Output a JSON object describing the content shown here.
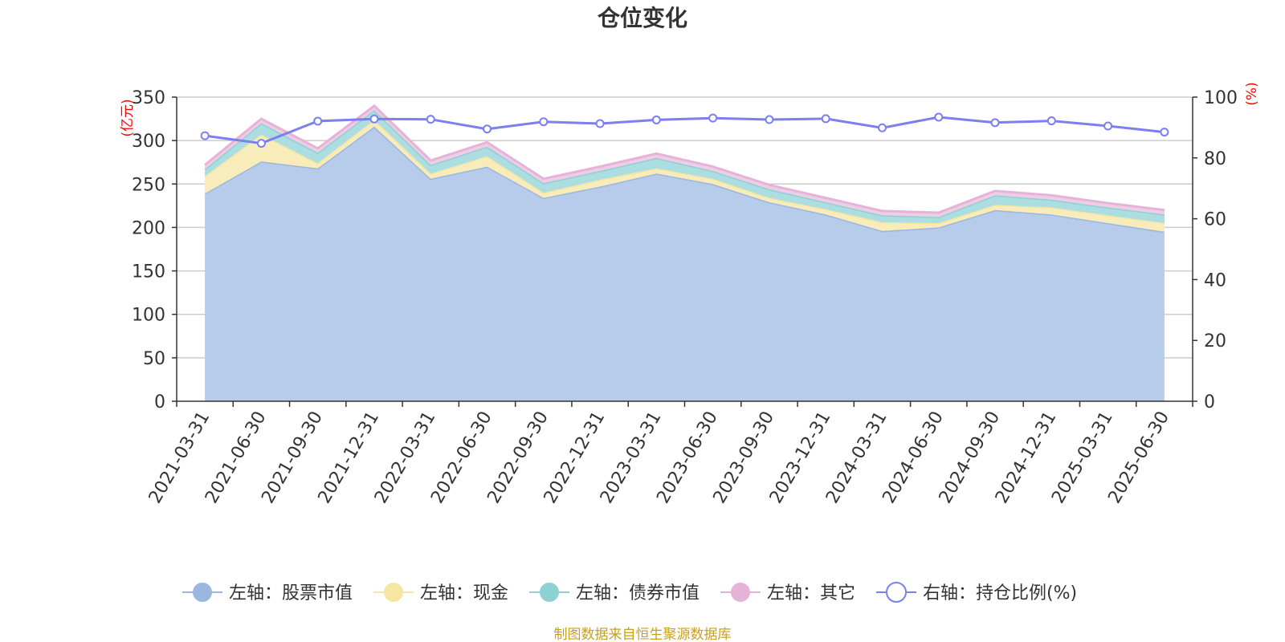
{
  "chart_data": {
    "type": "area",
    "title": "仓位变化",
    "left_axis_unit": "(亿元)",
    "right_axis_unit": "(%)",
    "categories": [
      "2021-03-31",
      "2021-06-30",
      "2021-09-30",
      "2021-12-31",
      "2022-03-31",
      "2022-06-30",
      "2022-09-30",
      "2022-12-31",
      "2023-03-31",
      "2023-06-30",
      "2023-09-30",
      "2023-12-31",
      "2024-03-31",
      "2024-06-30",
      "2024-09-30",
      "2024-12-31",
      "2025-03-31",
      "2025-06-30"
    ],
    "left_axis": {
      "min": 0,
      "max": 350,
      "ticks": [
        0,
        50,
        100,
        150,
        200,
        250,
        300,
        350
      ]
    },
    "right_axis": {
      "min": 0,
      "max": 100,
      "ticks": [
        0,
        20,
        40,
        60,
        80,
        100
      ]
    },
    "stacked": true,
    "grid": true,
    "series": [
      {
        "name": "左轴：股票市值",
        "axis": "left",
        "color": "#9bb7e0",
        "fill": "#b7cbea",
        "values": [
          239,
          276,
          268,
          316,
          256,
          270,
          234,
          247,
          262,
          250,
          229,
          215,
          196,
          200,
          220,
          215,
          205,
          195
        ]
      },
      {
        "name": "左轴：现金",
        "axis": "left",
        "color": "#f6e6a3",
        "fill": "#f8ecba",
        "values": [
          20,
          31,
          6,
          8,
          6,
          12,
          6,
          8,
          6,
          6,
          5,
          6,
          10,
          5,
          6,
          8,
          9,
          10
        ]
      },
      {
        "name": "左轴：债券市值",
        "axis": "left",
        "color": "#8dd1d4",
        "fill": "#acdde0",
        "values": [
          8,
          13,
          12,
          11,
          10,
          11,
          11,
          10,
          12,
          9,
          10,
          8,
          8,
          7,
          11,
          9,
          9,
          10
        ]
      },
      {
        "name": "左轴：其它",
        "axis": "left",
        "color": "#e6b3d8",
        "fill": "#f0cde6",
        "values": [
          5,
          5,
          5,
          5,
          5,
          5,
          5,
          5,
          5,
          5,
          5,
          5,
          5,
          5,
          5,
          5,
          5,
          5
        ]
      },
      {
        "name": "右轴：持仓比例(%)",
        "axis": "right",
        "type": "line",
        "color": "#7b7ff0",
        "values": [
          87.3,
          84.8,
          92.1,
          92.8,
          92.7,
          89.5,
          91.9,
          91.3,
          92.5,
          93.1,
          92.6,
          92.9,
          89.9,
          93.4,
          91.6,
          92.2,
          90.5,
          88.5
        ]
      }
    ],
    "legend_position": "bottom"
  },
  "source_note": "制图数据来自恒生聚源数据库",
  "colors": {
    "axis_unit": "#ff0000",
    "source_note": "#c8a020",
    "grid": "#cccccc",
    "axis": "#333333"
  }
}
